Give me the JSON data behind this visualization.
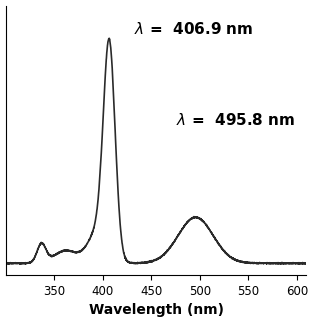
{
  "title": "",
  "xlabel": "Wavelength (nm)",
  "ylabel": "",
  "xlim": [
    300,
    610
  ],
  "line_color": "#2a2a2a",
  "line_width": 1.2,
  "background_color": "#ffffff",
  "xticks": [
    350,
    400,
    450,
    500,
    550,
    600
  ],
  "annotation1_fontsize": 11,
  "annotation2_fontsize": 11,
  "xlabel_fontsize": 10,
  "xlabel_fontweight": "bold"
}
